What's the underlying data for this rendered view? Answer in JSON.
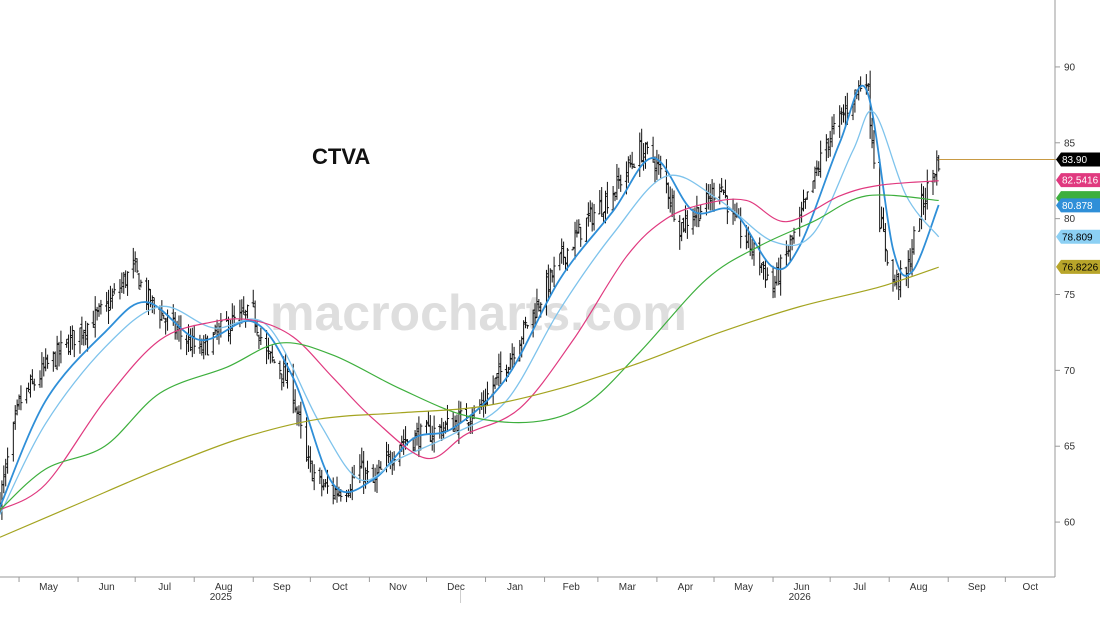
{
  "chart_data": {
    "type": "ohlc",
    "title": "CTVA",
    "watermark": "macrocharts.com",
    "y_axis": {
      "position": "right",
      "ylim": [
        57.5,
        92.5
      ],
      "ticks": [
        60,
        65,
        70,
        75,
        80,
        85,
        90
      ]
    },
    "x_axis": {
      "start": "2025-04-21",
      "end": "2026-10-15",
      "months": [
        {
          "date": "2025-05-01",
          "label": "May"
        },
        {
          "date": "2025-06-01",
          "label": "Jun"
        },
        {
          "date": "2025-07-01",
          "label": "Jul"
        },
        {
          "date": "2025-08-01",
          "label": "Aug"
        },
        {
          "date": "2025-09-01",
          "label": "Sep"
        },
        {
          "date": "2025-10-01",
          "label": "Oct"
        },
        {
          "date": "2025-11-01",
          "label": "Nov"
        },
        {
          "date": "2025-12-01",
          "label": "Dec"
        },
        {
          "date": "2026-01-01",
          "label": "Jan"
        },
        {
          "date": "2026-02-01",
          "label": "Feb"
        },
        {
          "date": "2026-03-01",
          "label": "Mar"
        },
        {
          "date": "2026-04-01",
          "label": "Apr"
        },
        {
          "date": "2026-05-01",
          "label": "May"
        },
        {
          "date": "2026-06-01",
          "label": "Jun"
        },
        {
          "date": "2026-07-01",
          "label": "Jul"
        },
        {
          "date": "2026-08-01",
          "label": "Aug"
        },
        {
          "date": "2026-09-01",
          "label": "Sep"
        },
        {
          "date": "2026-10-01",
          "label": "Oct"
        }
      ],
      "years": [
        {
          "date": "2025-08-15",
          "label": "2025"
        },
        {
          "date": "2026-06-15",
          "label": "2026"
        }
      ]
    },
    "price_anchors": [
      [
        "2025-04-21",
        61.5
      ],
      [
        "2025-05-01",
        67.8
      ],
      [
        "2025-05-15",
        70.2
      ],
      [
        "2025-06-01",
        72.5
      ],
      [
        "2025-06-15",
        74.0
      ],
      [
        "2025-06-30",
        76.8
      ],
      [
        "2025-07-07",
        74.8
      ],
      [
        "2025-07-21",
        72.8
      ],
      [
        "2025-08-04",
        71.2
      ],
      [
        "2025-08-18",
        73.0
      ],
      [
        "2025-09-01",
        73.8
      ],
      [
        "2025-09-08",
        71.0
      ],
      [
        "2025-09-15",
        70.2
      ],
      [
        "2025-09-22",
        68.5
      ],
      [
        "2025-09-29",
        64.0
      ],
      [
        "2025-10-06",
        62.5
      ],
      [
        "2025-10-13",
        62.0
      ],
      [
        "2025-10-20",
        62.3
      ],
      [
        "2025-10-27",
        63.5
      ],
      [
        "2025-11-03",
        62.5
      ],
      [
        "2025-11-17",
        65.3
      ],
      [
        "2025-12-01",
        65.8
      ],
      [
        "2025-12-15",
        66.5
      ],
      [
        "2025-12-29",
        67.5
      ],
      [
        "2026-01-12",
        70.5
      ],
      [
        "2026-01-26",
        73.8
      ],
      [
        "2026-02-09",
        77.2
      ],
      [
        "2026-02-23",
        79.8
      ],
      [
        "2026-03-09",
        81.8
      ],
      [
        "2026-03-23",
        84.5
      ],
      [
        "2026-03-30",
        84.0
      ],
      [
        "2026-04-06",
        82.2
      ],
      [
        "2026-04-13",
        79.5
      ],
      [
        "2026-04-27",
        81.0
      ],
      [
        "2026-05-04",
        82.5
      ],
      [
        "2026-05-11",
        80.0
      ],
      [
        "2026-05-25",
        77.2
      ],
      [
        "2026-06-01",
        75.5
      ],
      [
        "2026-06-15",
        79.8
      ],
      [
        "2026-06-29",
        85.0
      ],
      [
        "2026-07-06",
        86.5
      ],
      [
        "2026-07-13",
        88.0
      ],
      [
        "2026-07-20",
        89.5
      ],
      [
        "2026-07-27",
        80.0
      ],
      [
        "2026-08-03",
        75.8
      ],
      [
        "2026-08-10",
        76.2
      ],
      [
        "2026-08-17",
        80.5
      ],
      [
        "2026-08-24",
        83.0
      ],
      [
        "2026-08-27",
        83.9
      ]
    ],
    "moving_averages": [
      {
        "name": "ma-short",
        "color": "#2f8fd8",
        "width": 1.8,
        "anchors": [
          [
            "2025-04-21",
            61.0
          ],
          [
            "2025-05-15",
            68.0
          ],
          [
            "2025-06-15",
            72.5
          ],
          [
            "2025-07-07",
            74.5
          ],
          [
            "2025-08-04",
            72.0
          ],
          [
            "2025-09-01",
            73.2
          ],
          [
            "2025-09-22",
            69.5
          ],
          [
            "2025-10-13",
            62.5
          ],
          [
            "2025-11-03",
            62.8
          ],
          [
            "2025-11-24",
            65.5
          ],
          [
            "2025-12-15",
            66.2
          ],
          [
            "2026-01-12",
            69.5
          ],
          [
            "2026-02-09",
            76.0
          ],
          [
            "2026-03-09",
            80.5
          ],
          [
            "2026-03-30",
            84.0
          ],
          [
            "2026-04-20",
            80.5
          ],
          [
            "2026-05-11",
            80.5
          ],
          [
            "2026-06-01",
            76.8
          ],
          [
            "2026-06-15",
            78.2
          ],
          [
            "2026-07-06",
            85.0
          ],
          [
            "2026-07-20",
            88.5
          ],
          [
            "2026-08-03",
            78.0
          ],
          [
            "2026-08-13",
            76.5
          ],
          [
            "2026-08-27",
            80.9
          ]
        ]
      },
      {
        "name": "ma-medium",
        "color": "#7ec3ec",
        "width": 1.3,
        "anchors": [
          [
            "2025-04-21",
            60.5
          ],
          [
            "2025-05-15",
            66.5
          ],
          [
            "2025-06-15",
            71.5
          ],
          [
            "2025-07-14",
            74.2
          ],
          [
            "2025-08-11",
            72.8
          ],
          [
            "2025-09-08",
            73.0
          ],
          [
            "2025-10-06",
            66.5
          ],
          [
            "2025-10-27",
            62.8
          ],
          [
            "2025-11-17",
            64.2
          ],
          [
            "2025-12-15",
            65.8
          ],
          [
            "2026-01-12",
            68.0
          ],
          [
            "2026-02-09",
            74.0
          ],
          [
            "2026-03-09",
            79.0
          ],
          [
            "2026-04-06",
            82.8
          ],
          [
            "2026-05-04",
            81.2
          ],
          [
            "2026-06-01",
            78.5
          ],
          [
            "2026-06-22",
            79.0
          ],
          [
            "2026-07-13",
            84.5
          ],
          [
            "2026-07-24",
            87.0
          ],
          [
            "2026-08-10",
            81.5
          ],
          [
            "2026-08-27",
            78.8
          ]
        ]
      },
      {
        "name": "ma-50",
        "color": "#e0397f",
        "width": 1.2,
        "anchors": [
          [
            "2025-04-21",
            60.8
          ],
          [
            "2025-05-15",
            62.5
          ],
          [
            "2025-06-15",
            68.0
          ],
          [
            "2025-07-14",
            72.0
          ],
          [
            "2025-08-11",
            73.2
          ],
          [
            "2025-09-01",
            73.3
          ],
          [
            "2025-09-22",
            72.2
          ],
          [
            "2025-10-13",
            69.5
          ],
          [
            "2025-11-03",
            66.8
          ],
          [
            "2025-12-01",
            64.2
          ],
          [
            "2025-12-22",
            65.8
          ],
          [
            "2026-01-19",
            67.5
          ],
          [
            "2026-02-16",
            72.0
          ],
          [
            "2026-03-16",
            77.5
          ],
          [
            "2026-04-06",
            80.0
          ],
          [
            "2026-04-27",
            81.0
          ],
          [
            "2026-05-18",
            81.2
          ],
          [
            "2026-06-08",
            79.8
          ],
          [
            "2026-07-06",
            81.5
          ],
          [
            "2026-07-27",
            82.2
          ],
          [
            "2026-08-27",
            82.5
          ]
        ]
      },
      {
        "name": "ma-100",
        "color": "#3daf3d",
        "width": 1.2,
        "anchors": [
          [
            "2025-04-21",
            60.8
          ],
          [
            "2025-05-15",
            63.5
          ],
          [
            "2025-06-15",
            65.0
          ],
          [
            "2025-07-14",
            68.5
          ],
          [
            "2025-08-18",
            70.2
          ],
          [
            "2025-09-15",
            71.8
          ],
          [
            "2025-10-13",
            71.0
          ],
          [
            "2025-11-17",
            68.8
          ],
          [
            "2025-12-22",
            67.0
          ],
          [
            "2026-01-26",
            66.6
          ],
          [
            "2026-02-23",
            67.8
          ],
          [
            "2026-03-23",
            71.2
          ],
          [
            "2026-04-27",
            76.0
          ],
          [
            "2026-05-25",
            78.2
          ],
          [
            "2026-06-22",
            79.8
          ],
          [
            "2026-07-20",
            81.5
          ],
          [
            "2026-08-27",
            81.2
          ]
        ]
      },
      {
        "name": "ma-200",
        "color": "#a4a420",
        "width": 1.2,
        "anchors": [
          [
            "2025-04-21",
            59.0
          ],
          [
            "2025-06-01",
            61.2
          ],
          [
            "2025-07-14",
            63.5
          ],
          [
            "2025-08-25",
            65.5
          ],
          [
            "2025-10-06",
            66.8
          ],
          [
            "2025-11-17",
            67.2
          ],
          [
            "2025-12-29",
            67.6
          ],
          [
            "2026-02-09",
            68.8
          ],
          [
            "2026-03-23",
            70.5
          ],
          [
            "2026-05-04",
            72.5
          ],
          [
            "2026-06-15",
            74.2
          ],
          [
            "2026-07-27",
            75.5
          ],
          [
            "2026-08-27",
            76.8
          ]
        ]
      }
    ],
    "last_price_line": {
      "value": 83.9,
      "color": "#c89a44"
    },
    "badges": [
      {
        "label": "83.90",
        "value": 83.9,
        "bg": "#000000",
        "fg": "#ffffff"
      },
      {
        "label": "82.5416",
        "value": 82.5416,
        "bg": "#e0397f",
        "fg": "#ffffff"
      },
      {
        "label": "",
        "value": 81.35,
        "bg": "#3daf3d",
        "fg": "#ffffff"
      },
      {
        "label": "80.878",
        "value": 80.878,
        "bg": "#2f8fd8",
        "fg": "#ffffff"
      },
      {
        "label": "78.809",
        "value": 78.809,
        "bg": "#8cd0f4",
        "fg": "#000000"
      },
      {
        "label": "76.8226",
        "value": 76.8226,
        "bg": "#b8a52a",
        "fg": "#000000"
      }
    ]
  }
}
